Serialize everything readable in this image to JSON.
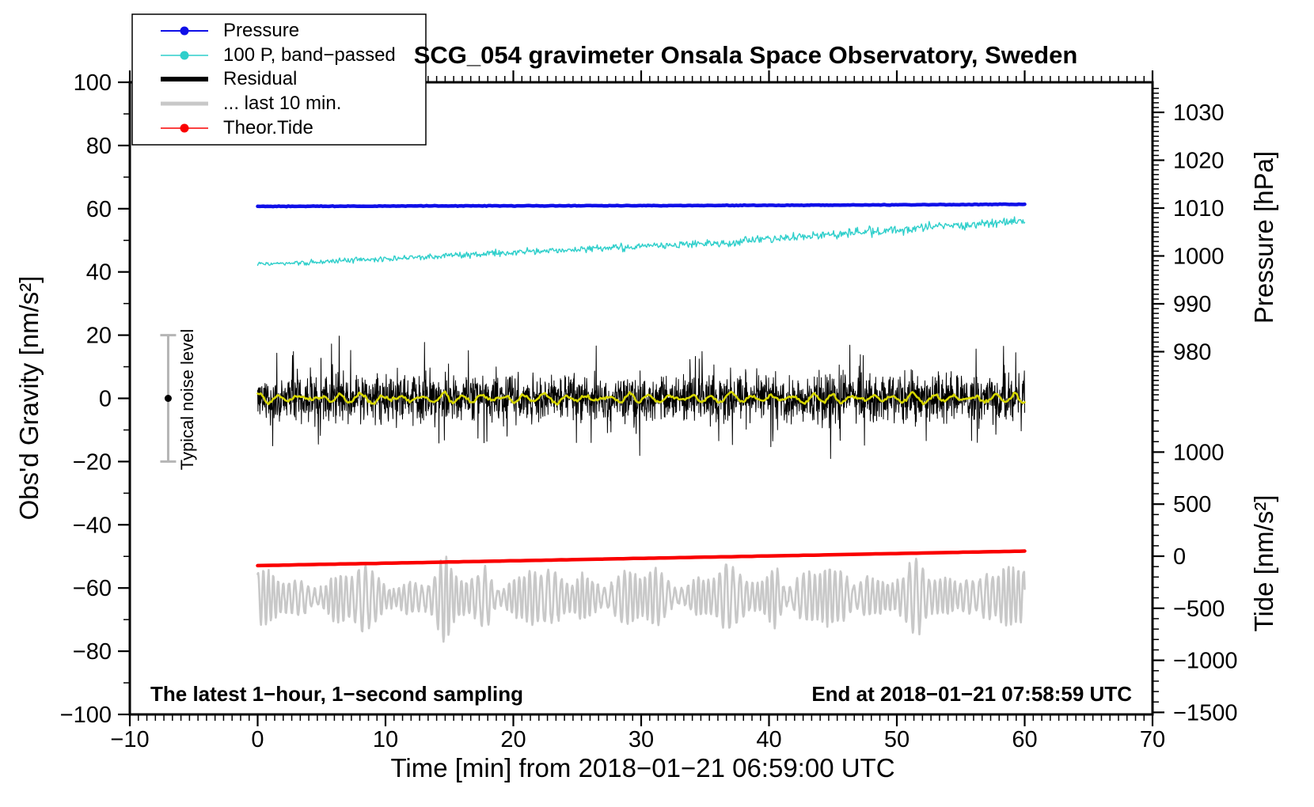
{
  "title": "SCG_054 gravimeter Onsala Space Observatory, Sweden",
  "annotations": {
    "sampling_note": "The latest 1−hour, 1−second sampling",
    "end_note": "End at 2018−01−21 07:58:59 UTC",
    "noise_bar_label": "Typical noise level"
  },
  "legend": {
    "items": [
      {
        "label": "Pressure",
        "color": "#0f0fe8",
        "marker": "circle",
        "sample_width": 2
      },
      {
        "label": "100 P, band−passed",
        "color": "#2fcfcb",
        "marker": "circle",
        "sample_width": 1.6
      },
      {
        "label": "Residual",
        "color": "#000000",
        "marker": "none",
        "sample_width": 6
      },
      {
        "label": "... last 10 min.",
        "color": "#c8c8c8",
        "marker": "none",
        "sample_width": 5
      },
      {
        "label": "Theor.Tide",
        "color": "#fa0000",
        "marker": "circle",
        "sample_width": 1.6
      }
    ]
  },
  "axes": {
    "x": {
      "label": "Time [min] from 2018−01−21 06:59:00 UTC",
      "min": -10,
      "max": 70,
      "major_tick_step": 10,
      "minor_tick_step_min": 0.6667,
      "tick_labels": [
        "−10",
        "0",
        "10",
        "20",
        "30",
        "40",
        "50",
        "60",
        "70"
      ]
    },
    "y_left": {
      "label": "Obs'd Gravity [nm/s²]",
      "min": -100,
      "max": 100,
      "major_tick_step": 20,
      "minor_tick_step": 10,
      "tick_labels": [
        "−100",
        "−80",
        "−60",
        "−40",
        "−20",
        "0",
        "20",
        "40",
        "60",
        "80",
        "100"
      ]
    },
    "y_right_pressure": {
      "label": "Pressure [hPa]",
      "tick_values": [
        1030,
        1020,
        1010,
        1000,
        990,
        980
      ],
      "tick_labels": [
        "1030",
        "1020",
        "1010",
        "1000",
        "990",
        "980"
      ],
      "minor_tick_step": 1
    },
    "y_right_tide": {
      "label": "Tide [nm/s²]",
      "tick_values": [
        1000,
        500,
        0,
        -500,
        -1000,
        -1500
      ],
      "tick_labels": [
        "1000",
        "500",
        "0",
        "−500",
        "−1000",
        "−1500"
      ],
      "minor_tick_step": 100
    }
  },
  "chart_data": {
    "type": "line",
    "x_axis": {
      "unit": "min",
      "data_start": 0,
      "data_end": 60
    },
    "grid": false,
    "legend_position": "top-left",
    "series": [
      {
        "name": "... last 10 min.",
        "axis": "gravity_nm_s2",
        "color": "#c8c8c8",
        "width": 2.6,
        "samples": 1400,
        "anchors": [
          [
            0,
            -63
          ],
          [
            15,
            -63.2
          ],
          [
            30,
            -62.8
          ],
          [
            45,
            -62.8
          ],
          [
            60,
            -62.5
          ]
        ],
        "noise": 0.8,
        "oscillation": {
          "period_min": 0.45,
          "amp": 5.5,
          "amp_wobble": 2.0
        },
        "peaks": [
          [
            8.2,
            3.5
          ],
          [
            14.6,
            5.5
          ],
          [
            17.9,
            5.0
          ],
          [
            21.5,
            3.0
          ],
          [
            25.3,
            3.2
          ],
          [
            31.0,
            2.5
          ],
          [
            36.5,
            3.0
          ],
          [
            40.5,
            5.5
          ],
          [
            44.5,
            3.0
          ],
          [
            47.5,
            3.5
          ],
          [
            51.5,
            4.0
          ],
          [
            55.5,
            3.5
          ],
          [
            58.5,
            3.0
          ]
        ],
        "clamp": [
          -77,
          -49
        ]
      },
      {
        "name": "Theor.Tide",
        "axis": "tide_nm_s2",
        "color": "#fa0000",
        "width": 4.5,
        "samples": 150,
        "anchors": [
          [
            0,
            -90
          ],
          [
            15,
            -56
          ],
          [
            30,
            -21
          ],
          [
            45,
            14
          ],
          [
            60,
            49
          ]
        ],
        "noise": 0.9
      },
      {
        "name": "100 P, band−passed",
        "axis": "gravity_nm_s2",
        "color": "#2fcfcb",
        "width": 1.4,
        "samples": 900,
        "anchors": [
          [
            0,
            42.3
          ],
          [
            5,
            43.1
          ],
          [
            10,
            44.2
          ],
          [
            15,
            45.1
          ],
          [
            20,
            46.3
          ],
          [
            25,
            47.1
          ],
          [
            30,
            48.1
          ],
          [
            35,
            48.9
          ],
          [
            40,
            50.4
          ],
          [
            45,
            51.9
          ],
          [
            50,
            53.3
          ],
          [
            55,
            54.9
          ],
          [
            60,
            56.0
          ]
        ],
        "noise": 0.7,
        "noise_end": 1.6
      },
      {
        "name": "Pressure",
        "axis": "pressure_hPa",
        "color": "#0f0fe8",
        "width": 4.5,
        "samples": 400,
        "anchors": [
          [
            0,
            1010.35
          ],
          [
            15,
            1010.45
          ],
          [
            30,
            1010.5
          ],
          [
            45,
            1010.62
          ],
          [
            60,
            1010.8
          ]
        ],
        "noise": 0.06
      },
      {
        "name": "Residual",
        "axis": "gravity_nm_s2",
        "color": "#000000",
        "width": 1,
        "samples": 2400,
        "anchors": [
          [
            0,
            0
          ],
          [
            60,
            0
          ]
        ],
        "noise": 7,
        "spikes": {
          "chance": 0.05,
          "extra": 12
        },
        "clamp": [
          -23,
          23
        ]
      },
      {
        "name": "Residual smoothed",
        "axis": "gravity_nm_s2",
        "color": "#d6d600",
        "width": 2.6,
        "samples": 500,
        "anchors": [
          [
            0,
            0
          ],
          [
            60,
            0
          ]
        ],
        "noise": 0.5,
        "oscillation": {
          "period_min": 1.6,
          "amp": 1.0,
          "amp_wobble": 0.5
        }
      }
    ],
    "noise_bar": {
      "x_min": -7,
      "center": 0,
      "half_range": 20
    }
  }
}
